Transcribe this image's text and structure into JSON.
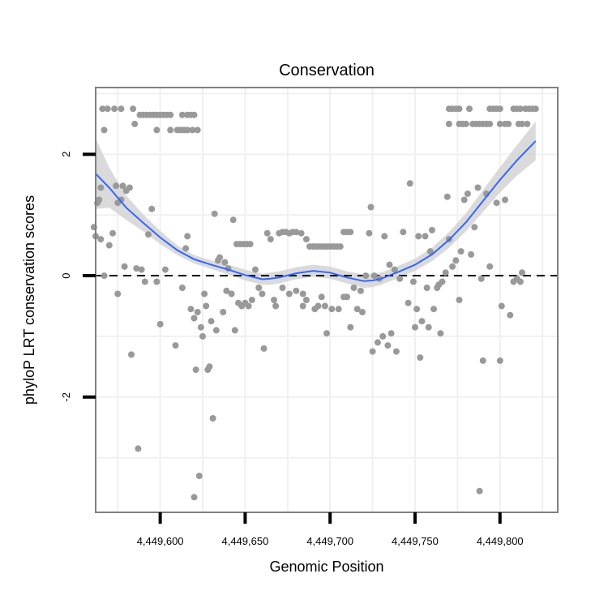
{
  "chart_data": {
    "type": "scatter",
    "title": "Conservation",
    "xlabel": "Genomic Position",
    "ylabel": "phyloP LRT conservation scores",
    "xlim": [
      4449562,
      4449834
    ],
    "ylim": [
      -3.9,
      3.1
    ],
    "x_ticks": [
      4449600,
      4449650,
      4449700,
      4449750,
      4449800
    ],
    "x_tick_labels": [
      "4,449,600",
      "4,449,650",
      "4,449,700",
      "4,449,750",
      "4,449,800"
    ],
    "y_ticks": [
      2,
      0,
      -2
    ],
    "y_tick_labels": [
      "2",
      "0",
      "-2"
    ],
    "reference_line": {
      "y": 0,
      "style": "dashed"
    },
    "colors": {
      "points": "#999999",
      "smooth": "#3366ff",
      "band": "#d3d3d3",
      "grid": "#f0f0f0",
      "frame": "#808080"
    },
    "points": [
      [
        4449566,
        2.75
      ],
      [
        4449569,
        2.75
      ],
      [
        4449573,
        2.75
      ],
      [
        4449577,
        2.75
      ],
      [
        4449584,
        2.75
      ],
      [
        4449567,
        2.4
      ],
      [
        4449585,
        2.5
      ],
      [
        4449588,
        2.65
      ],
      [
        4449590,
        2.65
      ],
      [
        4449592,
        2.65
      ],
      [
        4449594,
        2.65
      ],
      [
        4449596,
        2.65
      ],
      [
        4449598,
        2.65
      ],
      [
        4449600,
        2.65
      ],
      [
        4449602,
        2.65
      ],
      [
        4449604,
        2.65
      ],
      [
        4449606,
        2.65
      ],
      [
        4449613,
        2.65
      ],
      [
        4449616,
        2.65
      ],
      [
        4449618,
        2.65
      ],
      [
        4449620,
        2.65
      ],
      [
        4449598,
        2.4
      ],
      [
        4449606,
        2.4
      ],
      [
        4449610,
        2.4
      ],
      [
        4449612,
        2.4
      ],
      [
        4449614,
        2.4
      ],
      [
        4449616,
        2.4
      ],
      [
        4449619,
        2.4
      ],
      [
        4449622,
        2.4
      ],
      [
        4449770,
        2.75
      ],
      [
        4449772,
        2.75
      ],
      [
        4449774,
        2.75
      ],
      [
        4449776,
        2.75
      ],
      [
        4449782,
        2.75
      ],
      [
        4449794,
        2.75
      ],
      [
        4449796,
        2.75
      ],
      [
        4449798,
        2.75
      ],
      [
        4449800,
        2.75
      ],
      [
        4449808,
        2.75
      ],
      [
        4449810,
        2.75
      ],
      [
        4449812,
        2.75
      ],
      [
        4449815,
        2.75
      ],
      [
        4449817,
        2.75
      ],
      [
        4449819,
        2.75
      ],
      [
        4449821,
        2.75
      ],
      [
        4449770,
        2.5
      ],
      [
        4449776,
        2.5
      ],
      [
        4449778,
        2.5
      ],
      [
        4449780,
        2.5
      ],
      [
        4449784,
        2.5
      ],
      [
        4449786,
        2.5
      ],
      [
        4449788,
        2.5
      ],
      [
        4449790,
        2.5
      ],
      [
        4449792,
        2.5
      ],
      [
        4449794,
        2.5
      ],
      [
        4449800,
        2.5
      ],
      [
        4449803,
        2.5
      ],
      [
        4449805,
        2.5
      ],
      [
        4449811,
        2.5
      ],
      [
        4449813,
        2.5
      ],
      [
        4449816,
        2.5
      ],
      [
        4449561,
        0.8
      ],
      [
        4449562,
        0.65
      ],
      [
        4449563,
        1.2
      ],
      [
        4449564,
        1.25
      ],
      [
        4449565,
        1.45
      ],
      [
        4449565,
        0.6
      ],
      [
        4449567,
        0.0
      ],
      [
        4449570,
        0.5
      ],
      [
        4449572,
        0.7
      ],
      [
        4449574,
        1.48
      ],
      [
        4449575,
        1.2
      ],
      [
        4449577,
        1.25
      ],
      [
        4449578,
        1.48
      ],
      [
        4449580,
        1.4
      ],
      [
        4449582,
        1.45
      ],
      [
        4449575,
        -0.3
      ],
      [
        4449579,
        0.15
      ],
      [
        4449583,
        -1.3
      ],
      [
        4449586,
        0.12
      ],
      [
        4449589,
        0.1
      ],
      [
        4449591,
        -0.1
      ],
      [
        4449593,
        0.68
      ],
      [
        4449595,
        1.1
      ],
      [
        4449598,
        -0.1
      ],
      [
        4449600,
        -0.8
      ],
      [
        4449603,
        0.1
      ],
      [
        4449587,
        -2.85
      ],
      [
        4449609,
        -1.15
      ],
      [
        4449613,
        -0.2
      ],
      [
        4449615,
        0.45
      ],
      [
        4449616,
        0.65
      ],
      [
        4449618,
        -0.55
      ],
      [
        4449620,
        -0.7
      ],
      [
        4449621,
        -1.55
      ],
      [
        4449622,
        -0.6
      ],
      [
        4449624,
        -0.85
      ],
      [
        4449625,
        -1.0
      ],
      [
        4449627,
        -0.5
      ],
      [
        4449628,
        -1.55
      ],
      [
        4449629,
        -1.5
      ],
      [
        4449630,
        -0.75
      ],
      [
        4449631,
        -2.35
      ],
      [
        4449632,
        1.02
      ],
      [
        4449633,
        -0.9
      ],
      [
        4449634,
        0.25
      ],
      [
        4449635,
        0.3
      ],
      [
        4449637,
        -0.6
      ],
      [
        4449638,
        0.22
      ],
      [
        4449639,
        -0.25
      ],
      [
        4449640,
        0.12
      ],
      [
        4449642,
        -0.3
      ],
      [
        4449643,
        0.92
      ],
      [
        4449644,
        -0.9
      ],
      [
        4449620,
        -3.65
      ],
      [
        4449623,
        -3.3
      ],
      [
        4449626,
        -0.3
      ],
      [
        4449645,
        0.52
      ],
      [
        4449647,
        0.52
      ],
      [
        4449649,
        0.52
      ],
      [
        4449651,
        0.52
      ],
      [
        4449653,
        0.52
      ],
      [
        4449646,
        -0.45
      ],
      [
        4449648,
        -0.5
      ],
      [
        4449650,
        -0.45
      ],
      [
        4449652,
        -0.5
      ],
      [
        4449654,
        -0.4
      ],
      [
        4449656,
        0.1
      ],
      [
        4449658,
        -0.2
      ],
      [
        4449660,
        -0.3
      ],
      [
        4449661,
        -1.2
      ],
      [
        4449663,
        0.7
      ],
      [
        4449665,
        0.6
      ],
      [
        4449667,
        -0.4
      ],
      [
        4449668,
        -0.5
      ],
      [
        4449670,
        0.7
      ],
      [
        4449672,
        0.72
      ],
      [
        4449674,
        0.72
      ],
      [
        4449676,
        0.7
      ],
      [
        4449678,
        0.72
      ],
      [
        4449680,
        0.72
      ],
      [
        4449683,
        0.7
      ],
      [
        4449686,
        0.6
      ],
      [
        4449672,
        -0.2
      ],
      [
        4449676,
        -0.3
      ],
      [
        4449680,
        -0.25
      ],
      [
        4449684,
        -0.3
      ],
      [
        4449684,
        -0.5
      ],
      [
        4449686,
        -0.4
      ],
      [
        4449688,
        0.48
      ],
      [
        4449690,
        0.48
      ],
      [
        4449692,
        0.48
      ],
      [
        4449694,
        0.48
      ],
      [
        4449696,
        0.48
      ],
      [
        4449698,
        0.48
      ],
      [
        4449700,
        0.48
      ],
      [
        4449702,
        0.48
      ],
      [
        4449704,
        0.48
      ],
      [
        4449706,
        0.48
      ],
      [
        4449708,
        0.72
      ],
      [
        4449710,
        0.72
      ],
      [
        4449712,
        0.72
      ],
      [
        4449691,
        -0.55
      ],
      [
        4449693,
        -0.5
      ],
      [
        4449695,
        -0.35
      ],
      [
        4449697,
        -0.5
      ],
      [
        4449698,
        -0.95
      ],
      [
        4449701,
        -0.55
      ],
      [
        4449705,
        -0.55
      ],
      [
        4449708,
        -0.35
      ],
      [
        4449710,
        -0.35
      ],
      [
        4449712,
        -0.85
      ],
      [
        4449714,
        -0.2
      ],
      [
        4449716,
        -0.55
      ],
      [
        4449718,
        -0.25
      ],
      [
        4449719,
        -0.6
      ],
      [
        4449721,
        0.0
      ],
      [
        4449723,
        0.7
      ],
      [
        4449724,
        1.13
      ],
      [
        4449725,
        -1.25
      ],
      [
        4449726,
        0.0
      ],
      [
        4449728,
        -1.1
      ],
      [
        4449729,
        -0.05
      ],
      [
        4449731,
        -1.0
      ],
      [
        4449732,
        0.65
      ],
      [
        4449734,
        -1.15
      ],
      [
        4449735,
        0.18
      ],
      [
        4449736,
        -0.95
      ],
      [
        4449738,
        0.1
      ],
      [
        4449739,
        -1.25
      ],
      [
        4449741,
        -0.05
      ],
      [
        4449743,
        0.72
      ],
      [
        4449746,
        -0.45
      ],
      [
        4449747,
        1.52
      ],
      [
        4449749,
        -0.1
      ],
      [
        4449750,
        -0.85
      ],
      [
        4449751,
        -0.55
      ],
      [
        4449752,
        0.65
      ],
      [
        4449753,
        -1.35
      ],
      [
        4449754,
        -0.75
      ],
      [
        4449756,
        0.65
      ],
      [
        4449757,
        -0.2
      ],
      [
        4449758,
        -0.85
      ],
      [
        4449759,
        0.4
      ],
      [
        4449760,
        0.75
      ],
      [
        4449761,
        -0.55
      ],
      [
        4449763,
        -0.2
      ],
      [
        4449764,
        -0.15
      ],
      [
        4449765,
        -0.95
      ],
      [
        4449766,
        -0.1
      ],
      [
        4449768,
        0.05
      ],
      [
        4449769,
        1.3
      ],
      [
        4449770,
        0.6
      ],
      [
        4449772,
        0.15
      ],
      [
        4449774,
        0.25
      ],
      [
        4449776,
        -0.4
      ],
      [
        4449777,
        0.4
      ],
      [
        4449779,
        1.25
      ],
      [
        4449781,
        1.35
      ],
      [
        4449783,
        0.35
      ],
      [
        4449785,
        0.8
      ],
      [
        4449787,
        1.45
      ],
      [
        4449789,
        -0.05
      ],
      [
        4449792,
        1.35
      ],
      [
        4449794,
        0.15
      ],
      [
        4449798,
        1.2
      ],
      [
        4449801,
        -0.5
      ],
      [
        4449803,
        1.25
      ],
      [
        4449806,
        -0.65
      ],
      [
        4449808,
        -0.1
      ],
      [
        4449810,
        -0.05
      ],
      [
        4449812,
        -0.1
      ],
      [
        4449813,
        0.05
      ],
      [
        4449790,
        -1.4
      ],
      [
        4449800,
        -1.4
      ],
      [
        4449788,
        -3.55
      ]
    ],
    "smooth": {
      "x": [
        4449562,
        4449570,
        4449580,
        4449590,
        4449600,
        4449610,
        4449620,
        4449630,
        4449640,
        4449650,
        4449660,
        4449665,
        4449670,
        4449680,
        4449690,
        4449700,
        4449710,
        4449720,
        4449725,
        4449730,
        4449740,
        4449750,
        4449760,
        4449770,
        4449780,
        4449790,
        4449800,
        4449810,
        4449821
      ],
      "y": [
        1.68,
        1.45,
        1.12,
        0.87,
        0.63,
        0.42,
        0.27,
        0.18,
        0.1,
        0.01,
        -0.06,
        -0.05,
        -0.03,
        0.04,
        0.08,
        0.05,
        -0.03,
        -0.09,
        -0.08,
        -0.05,
        0.06,
        0.18,
        0.35,
        0.59,
        0.88,
        1.23,
        1.58,
        1.9,
        2.22
      ]
    },
    "band": {
      "lower": [
        1.1,
        1.12,
        0.92,
        0.73,
        0.52,
        0.34,
        0.2,
        0.11,
        0.02,
        -0.08,
        -0.15,
        -0.15,
        -0.13,
        -0.06,
        -0.02,
        -0.05,
        -0.13,
        -0.2,
        -0.19,
        -0.15,
        -0.04,
        0.08,
        0.24,
        0.46,
        0.73,
        1.05,
        1.37,
        1.65,
        1.9
      ],
      "upper": [
        2.26,
        1.78,
        1.32,
        1.01,
        0.74,
        0.5,
        0.34,
        0.25,
        0.18,
        0.1,
        0.03,
        0.05,
        0.07,
        0.14,
        0.18,
        0.15,
        0.07,
        0.02,
        0.03,
        0.05,
        0.16,
        0.28,
        0.46,
        0.72,
        1.03,
        1.41,
        1.79,
        2.15,
        2.54
      ]
    }
  }
}
